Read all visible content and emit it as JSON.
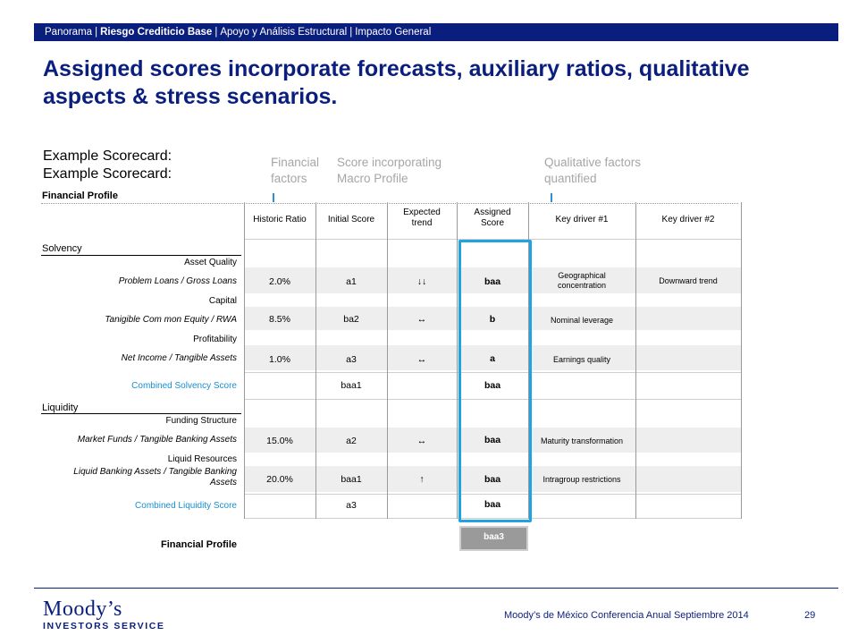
{
  "topbar": {
    "item1": "Panorama",
    "sep": "|",
    "item2": "Riesgo Crediticio Base",
    "item3": "Apoyo y Análisis Estructural",
    "item4": "Impacto General"
  },
  "title": "Assigned scores incorporate forecasts, auxiliary ratios, qualitative aspects & stress scenarios.",
  "example_label_1": "Example Scorecard:",
  "example_label_2": "Example Scorecard:",
  "callouts": {
    "financial_factors_1": "Financial",
    "financial_factors_2": "factors",
    "macro_1": "Score incorporating",
    "macro_2": "Macro Profile",
    "qual_1": "Qualitative factors",
    "qual_2": "quantified"
  },
  "scorecard": {
    "financial_profile_label": "Financial Profile",
    "headers": {
      "historic": "Historic Ratio",
      "initial": "Initial Score",
      "expected_1": "Expected",
      "expected_2": "trend",
      "assigned_1": "Assigned",
      "assigned_2": "Score",
      "driver1": "Key driver #1",
      "driver2": "Key driver #2"
    },
    "solvency_label": "Solvency",
    "liquidity_label": "Liquidity",
    "rows": {
      "asset_quality": "Asset Quality",
      "problem_loans": {
        "label": "Problem Loans / Gross Loans",
        "historic": "2.0%",
        "initial": "a1",
        "trend": "↓↓",
        "assigned": "baa",
        "driver1_a": "Geographical",
        "driver1_b": "concentration",
        "driver2": "Downward trend"
      },
      "capital": "Capital",
      "tce": {
        "label": "Tanigible Com mon Equity / RWA",
        "historic": "8.5%",
        "initial": "ba2",
        "trend": "↔",
        "assigned": "b",
        "driver1": "Nominal leverage"
      },
      "profitability": "Profitability",
      "net_income": {
        "label": "Net Income / Tangible Assets",
        "historic": "1.0%",
        "initial": "a3",
        "trend": "↔",
        "assigned": "a",
        "driver1": "Earnings quality"
      },
      "combined_solvency": {
        "label": "Combined Solvency Score",
        "initial": "baa1",
        "assigned": "baa"
      },
      "funding_structure": "Funding Structure",
      "market_funds": {
        "label": "Market Funds / Tangible Banking Assets",
        "historic": "15.0%",
        "initial": "a2",
        "trend": "↔",
        "assigned": "baa",
        "driver1": "Maturity transformation"
      },
      "liquid_resources": "Liquid Resources",
      "liquid_banking": {
        "label_1": "Liquid Banking Assets / Tangible Banking",
        "label_2": "Assets",
        "historic": "20.0%",
        "initial": "baa1",
        "trend": "↑",
        "assigned": "baa",
        "driver1": "Intragroup restrictions"
      },
      "combined_liquidity": {
        "label": "Combined Liquidity Score",
        "initial": "a3",
        "assigned": "baa"
      }
    },
    "final_label": "Financial Profile",
    "final_score": "baa3"
  },
  "footer": {
    "logo_line1": "Moody’s",
    "logo_line2": "INVESTORS SERVICE",
    "event": "Moody’s  de México Conferencia Anual  Septiembre 2014",
    "page": "29"
  },
  "colors": {
    "navy": "#0a1f7d",
    "accent_blue": "#1fa3e3",
    "callout_gray": "#a6a6a6"
  }
}
